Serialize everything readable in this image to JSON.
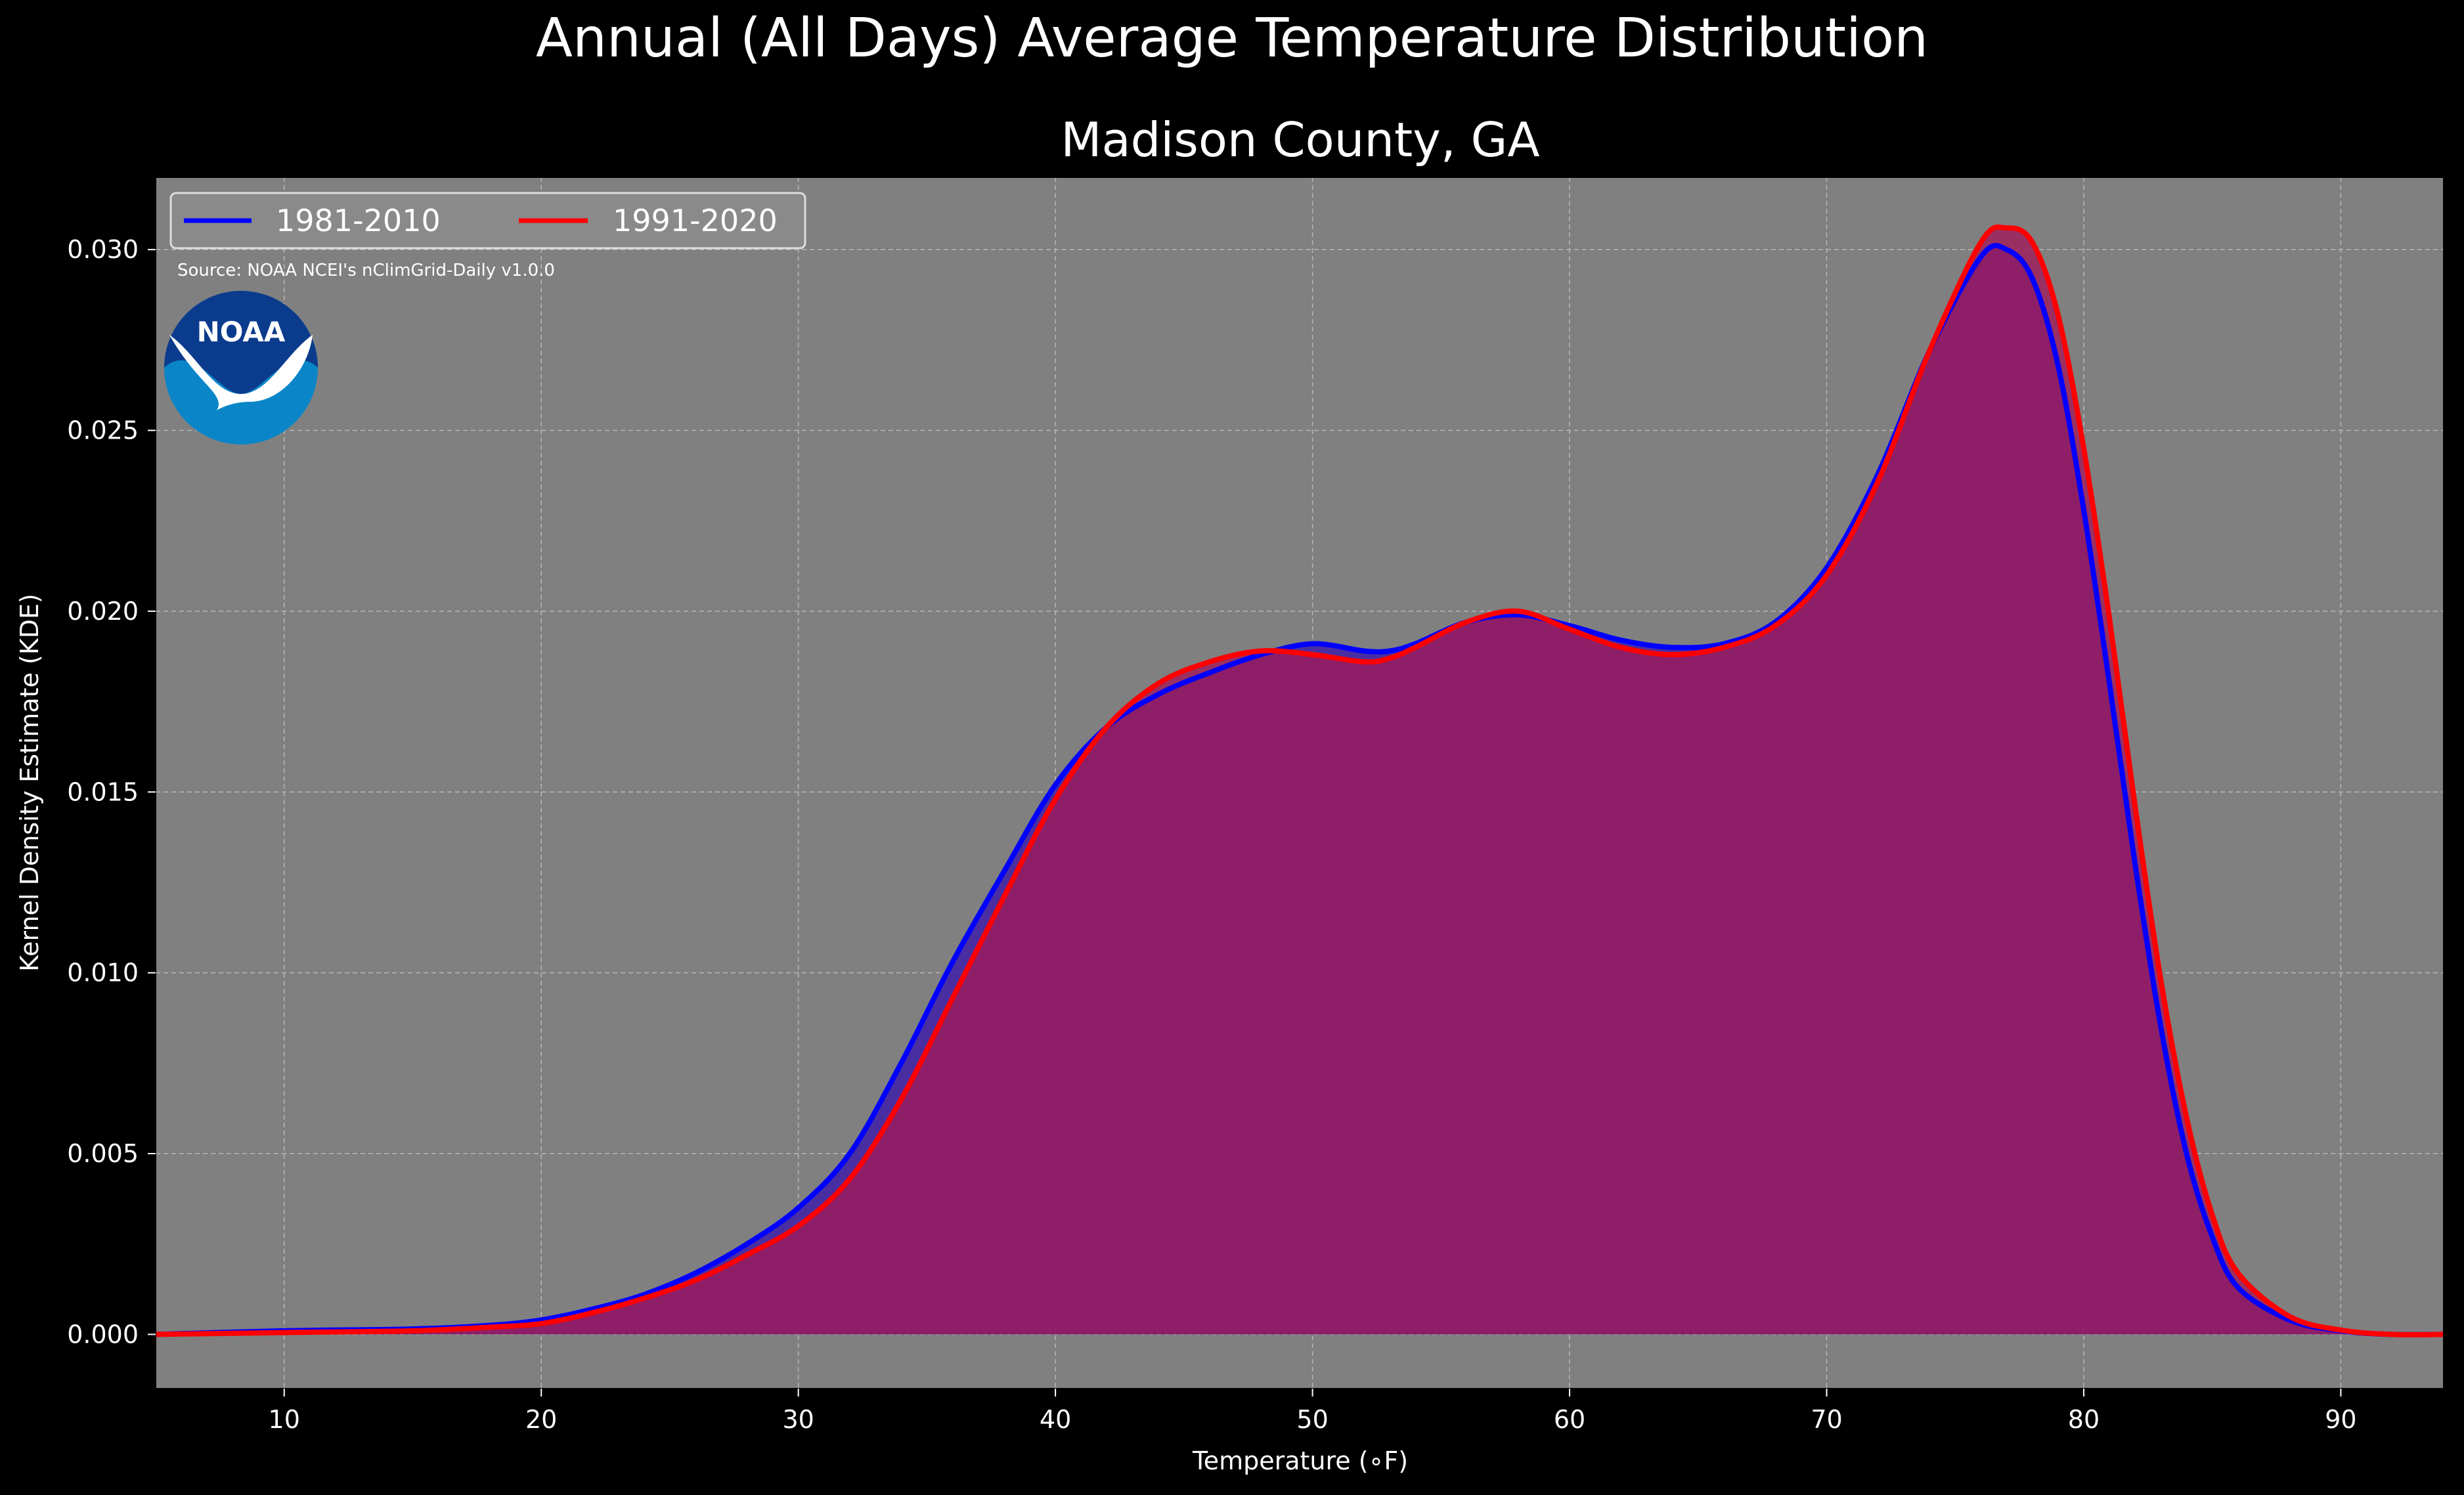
{
  "chart_data": {
    "type": "area",
    "suptitle": "Annual (All Days) Average Temperature Distribution",
    "title": "Madison County, GA",
    "xlabel": "Temperature (∘F)",
    "ylabel": "Kernel Density Estimate (KDE)",
    "xlim": [
      5,
      94
    ],
    "ylim": [
      -0.0015,
      0.032
    ],
    "x_ticks": [
      10,
      20,
      30,
      40,
      50,
      60,
      70,
      80,
      90
    ],
    "x_tick_labels": [
      "10",
      "20",
      "30",
      "40",
      "50",
      "60",
      "70",
      "80",
      "90"
    ],
    "y_ticks": [
      0.0,
      0.005,
      0.01,
      0.015,
      0.02,
      0.025,
      0.03
    ],
    "y_tick_labels": [
      "0.000",
      "0.005",
      "0.010",
      "0.015",
      "0.020",
      "0.025",
      "0.030"
    ],
    "grid": true,
    "legend_position": "top-left",
    "source_note": "Source: NOAA NCEI's nClimGrid-Daily v1.0.0",
    "logo_text": "NOAA",
    "colors": {
      "figure_bg": "#000000",
      "axes_bg": "#808080",
      "grid": "#b8b8b8",
      "series_1981": "#0000ff",
      "series_1991": "#ff0000",
      "fill_1981": "#4020a8",
      "fill_1991": "#a01a5a",
      "logo_outer": "#0a86c8",
      "logo_inner": "#0b3b8c"
    },
    "series": [
      {
        "name": "1981-2010",
        "color": "#0000ff",
        "x": [
          5,
          10,
          15,
          18,
          20,
          22,
          24,
          26,
          28,
          30,
          32,
          34,
          36,
          38,
          40,
          42,
          44,
          46,
          48,
          50,
          52,
          53,
          54,
          56,
          58,
          60,
          62,
          64,
          66,
          68,
          70,
          72,
          74,
          76,
          77,
          78,
          79,
          80,
          81,
          82,
          83,
          84,
          85,
          86,
          88,
          90,
          92,
          94
        ],
        "y": [
          0.0,
          0.0001,
          0.00015,
          0.00025,
          0.0004,
          0.0007,
          0.0011,
          0.0017,
          0.0025,
          0.0035,
          0.005,
          0.0075,
          0.0103,
          0.0128,
          0.0152,
          0.0168,
          0.0177,
          0.0183,
          0.0188,
          0.0191,
          0.0189,
          0.0189,
          0.0191,
          0.0197,
          0.0199,
          0.0196,
          0.0192,
          0.019,
          0.0191,
          0.0197,
          0.0212,
          0.0238,
          0.0272,
          0.0298,
          0.03,
          0.0292,
          0.0268,
          0.0228,
          0.018,
          0.013,
          0.0085,
          0.005,
          0.0027,
          0.0013,
          0.0004,
          0.0001,
          0.0,
          0.0
        ]
      },
      {
        "name": "1991-2020",
        "color": "#ff0000",
        "x": [
          5,
          10,
          15,
          18,
          20,
          22,
          24,
          26,
          28,
          30,
          32,
          34,
          36,
          38,
          40,
          42,
          44,
          46,
          48,
          50,
          52,
          53,
          54,
          56,
          58,
          60,
          62,
          64,
          66,
          68,
          70,
          72,
          74,
          76,
          77,
          78,
          79,
          80,
          81,
          82,
          83,
          84,
          85,
          86,
          88,
          90,
          92,
          94
        ],
        "y": [
          0.0,
          5e-05,
          0.0001,
          0.0002,
          0.0003,
          0.0006,
          0.001,
          0.0015,
          0.0022,
          0.003,
          0.0043,
          0.0065,
          0.0093,
          0.0121,
          0.0148,
          0.0168,
          0.018,
          0.0186,
          0.0189,
          0.0188,
          0.0186,
          0.0187,
          0.019,
          0.0197,
          0.02,
          0.0195,
          0.019,
          0.0188,
          0.019,
          0.0196,
          0.021,
          0.0236,
          0.0272,
          0.0302,
          0.0306,
          0.0302,
          0.0282,
          0.0245,
          0.0198,
          0.0146,
          0.0098,
          0.006,
          0.0033,
          0.0017,
          0.0005,
          0.00012,
          0.0,
          0.0
        ]
      }
    ]
  }
}
